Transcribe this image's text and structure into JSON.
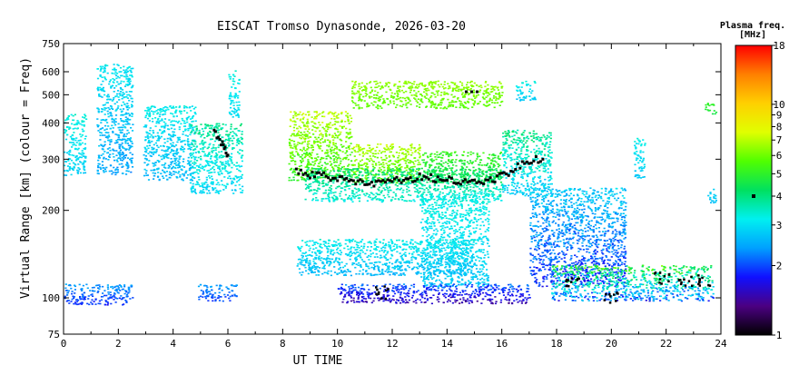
{
  "chart_data": {
    "type": "heatmap",
    "title": "EISCAT Tromso Dynasonde, 2026-03-20",
    "xlabel": "UT TIME",
    "ylabel": "Virtual Range [km] (colour = Freq)",
    "xlim": [
      0,
      24
    ],
    "x_ticks": [
      0,
      2,
      4,
      6,
      8,
      10,
      12,
      14,
      16,
      18,
      20,
      22,
      24
    ],
    "ylim": [
      75,
      750
    ],
    "y_scale": "log",
    "y_ticks": [
      75,
      100,
      200,
      300,
      400,
      500,
      600,
      750
    ],
    "colorbar": {
      "title": "Plasma freq.",
      "unit": "[MHz]",
      "scale": "log",
      "range": [
        1,
        18
      ],
      "ticks": [
        1,
        2,
        3,
        4,
        5,
        6,
        7,
        8,
        9,
        10,
        18
      ],
      "colors": [
        "#000000",
        "#4b0082",
        "#1010ff",
        "#00a0ff",
        "#00f0f0",
        "#00e060",
        "#50ff00",
        "#e0ff00",
        "#ffd000",
        "#ff8000",
        "#ff0000"
      ]
    },
    "foF2_marker_freq": 4,
    "regions": [
      {
        "t": [
          0.0,
          0.8
        ],
        "h": [
          265,
          430
        ],
        "f": [
          2.6,
          3.6
        ]
      },
      {
        "t": [
          1.2,
          2.5
        ],
        "h": [
          265,
          640
        ],
        "f": [
          2.2,
          3.4
        ]
      },
      {
        "t": [
          2.9,
          4.8
        ],
        "h": [
          255,
          460
        ],
        "f": [
          2.4,
          3.4
        ]
      },
      {
        "t": [
          4.6,
          6.5
        ],
        "h": [
          230,
          400
        ],
        "f": [
          2.6,
          4.2
        ]
      },
      {
        "t": [
          6.0,
          6.4
        ],
        "h": [
          420,
          620
        ],
        "f": [
          2.8,
          3.5
        ]
      },
      {
        "t": [
          8.2,
          10.5
        ],
        "h": [
          255,
          440
        ],
        "f": [
          4.5,
          8.0
        ]
      },
      {
        "t": [
          10.5,
          13.0
        ],
        "h": [
          250,
          340
        ],
        "f": [
          5.0,
          7.5
        ]
      },
      {
        "t": [
          8.8,
          16.0
        ],
        "h": [
          215,
          280
        ],
        "f": [
          3.0,
          4.6
        ]
      },
      {
        "t": [
          10.5,
          16.0
        ],
        "h": [
          450,
          560
        ],
        "f": [
          5.5,
          6.8
        ]
      },
      {
        "t": [
          13.0,
          16.0
        ],
        "h": [
          250,
          320
        ],
        "f": [
          4.0,
          5.6
        ]
      },
      {
        "t": [
          16.0,
          17.8
        ],
        "h": [
          225,
          380
        ],
        "f": [
          2.4,
          4.5
        ]
      },
      {
        "t": [
          16.5,
          17.2
        ],
        "h": [
          480,
          560
        ],
        "f": [
          2.6,
          3.4
        ]
      },
      {
        "t": [
          17.0,
          20.5
        ],
        "h": [
          110,
          240
        ],
        "f": [
          1.6,
          3.2
        ]
      },
      {
        "t": [
          20.8,
          21.2
        ],
        "h": [
          260,
          360
        ],
        "f": [
          2.6,
          3.4
        ]
      },
      {
        "t": [
          13.0,
          15.5
        ],
        "h": [
          110,
          230
        ],
        "f": [
          2.6,
          3.5
        ]
      },
      {
        "t": [
          8.5,
          15.0
        ],
        "h": [
          120,
          160
        ],
        "f": [
          2.4,
          3.5
        ]
      },
      {
        "t": [
          0.0,
          2.5
        ],
        "h": [
          95,
          112
        ],
        "f": [
          1.7,
          2.6
        ]
      },
      {
        "t": [
          4.9,
          6.3
        ],
        "h": [
          98,
          112
        ],
        "f": [
          1.8,
          2.6
        ]
      },
      {
        "t": [
          10.0,
          17.0
        ],
        "h": [
          96,
          112
        ],
        "f": [
          1.3,
          2.4
        ]
      },
      {
        "t": [
          17.8,
          23.7
        ],
        "h": [
          98,
          130
        ],
        "f": [
          1.6,
          6.5
        ]
      },
      {
        "t": [
          23.5,
          23.8
        ],
        "h": [
          210,
          240
        ],
        "f": [
          2.6,
          3.0
        ]
      },
      {
        "t": [
          23.4,
          23.8
        ],
        "h": [
          430,
          470
        ],
        "f": [
          4.5,
          5.2
        ]
      }
    ],
    "foF2_trace": [
      {
        "x": 5.5,
        "y": 370
      },
      {
        "x": 5.8,
        "y": 340
      },
      {
        "x": 6.0,
        "y": 310
      },
      {
        "x": 8.5,
        "y": 270
      },
      {
        "x": 9.0,
        "y": 265
      },
      {
        "x": 9.5,
        "y": 262
      },
      {
        "x": 10.0,
        "y": 258
      },
      {
        "x": 10.5,
        "y": 255
      },
      {
        "x": 11.0,
        "y": 250
      },
      {
        "x": 11.5,
        "y": 248
      },
      {
        "x": 12.0,
        "y": 252
      },
      {
        "x": 12.5,
        "y": 256
      },
      {
        "x": 13.0,
        "y": 260
      },
      {
        "x": 13.5,
        "y": 258
      },
      {
        "x": 14.0,
        "y": 254
      },
      {
        "x": 14.5,
        "y": 252
      },
      {
        "x": 15.0,
        "y": 250
      },
      {
        "x": 15.5,
        "y": 253
      },
      {
        "x": 16.0,
        "y": 262
      },
      {
        "x": 16.5,
        "y": 280
      },
      {
        "x": 17.0,
        "y": 295
      },
      {
        "x": 17.5,
        "y": 300
      }
    ],
    "e_layer_marks": [
      {
        "x": 11.7,
        "y": 105
      },
      {
        "x": 19.9,
        "y": 101
      },
      {
        "x": 18.6,
        "y": 112
      },
      {
        "x": 21.8,
        "y": 118
      },
      {
        "x": 22.6,
        "y": 115
      },
      {
        "x": 23.3,
        "y": 115
      }
    ],
    "es_marks": [
      {
        "x": 14.7,
        "y": 512
      },
      {
        "x": 14.9,
        "y": 512
      },
      {
        "x": 15.1,
        "y": 512
      }
    ]
  }
}
